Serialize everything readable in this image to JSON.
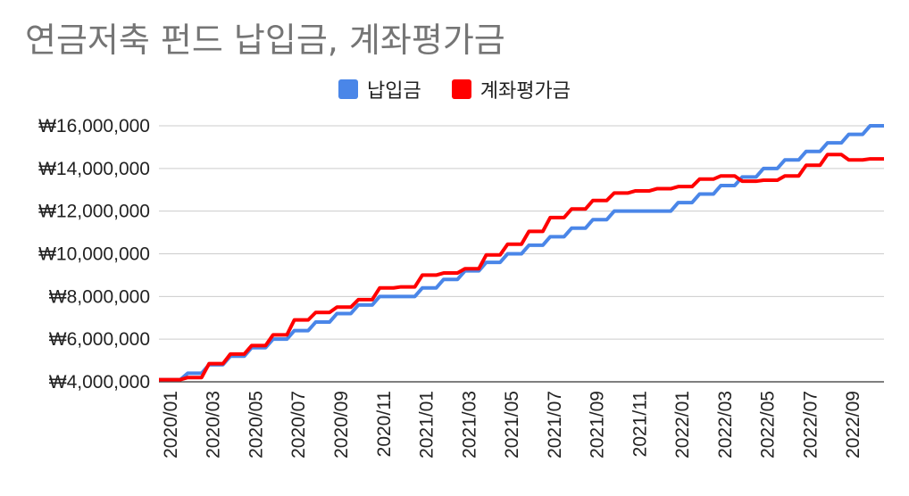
{
  "chart_data": {
    "type": "line",
    "title": "연금저축 펀드 납입금, 계좌평가금",
    "xlabel": "",
    "ylabel": "",
    "ylim": [
      4000000,
      16000000
    ],
    "yticks": [
      4000000,
      6000000,
      8000000,
      10000000,
      12000000,
      14000000,
      16000000
    ],
    "ytick_labels": [
      "₩4,000,000",
      "₩6,000,000",
      "₩8,000,000",
      "₩10,000,000",
      "₩12,000,000",
      "₩14,000,000",
      "₩16,000,000"
    ],
    "x": [
      "2020/01",
      "2020/02",
      "2020/03",
      "2020/04",
      "2020/05",
      "2020/06",
      "2020/07",
      "2020/08",
      "2020/09",
      "2020/10",
      "2020/11",
      "2020/12",
      "2021/01",
      "2021/02",
      "2021/03",
      "2021/04",
      "2021/05",
      "2021/06",
      "2021/07",
      "2021/08",
      "2021/09",
      "2021/10",
      "2021/11",
      "2021/12",
      "2022/01",
      "2022/02",
      "2022/03",
      "2022/04",
      "2022/05",
      "2022/06",
      "2022/07",
      "2022/08",
      "2022/09",
      "2022/10"
    ],
    "xtick_labels": [
      "2020/01",
      "2020/03",
      "2020/05",
      "2020/07",
      "2020/09",
      "2020/11",
      "2021/01",
      "2021/03",
      "2021/05",
      "2021/07",
      "2021/09",
      "2021/11",
      "2022/01",
      "2022/03",
      "2022/05",
      "2022/07",
      "2022/09"
    ],
    "grid": true,
    "legend_position": "top",
    "series": [
      {
        "name": "납입금",
        "color": "#4a86e8",
        "values": [
          4100000,
          4400000,
          4800000,
          5200000,
          5600000,
          6000000,
          6400000,
          6800000,
          7200000,
          7600000,
          8000000,
          8000000,
          8400000,
          8800000,
          9200000,
          9600000,
          10000000,
          10400000,
          10800000,
          11200000,
          11600000,
          12000000,
          12000000,
          12000000,
          12400000,
          12800000,
          13200000,
          13600000,
          14000000,
          14400000,
          14800000,
          15200000,
          15600000,
          16000000
        ]
      },
      {
        "name": "계좌평가금",
        "color": "#ff0000",
        "values": [
          4100000,
          4200000,
          4850000,
          5300000,
          5700000,
          6200000,
          6900000,
          7250000,
          7500000,
          7850000,
          8400000,
          8450000,
          9000000,
          9100000,
          9300000,
          9950000,
          10450000,
          11050000,
          11700000,
          12100000,
          12500000,
          12850000,
          12950000,
          13050000,
          13150000,
          13500000,
          13650000,
          13400000,
          13450000,
          13650000,
          14150000,
          14650000,
          14400000,
          14450000
        ]
      }
    ]
  }
}
